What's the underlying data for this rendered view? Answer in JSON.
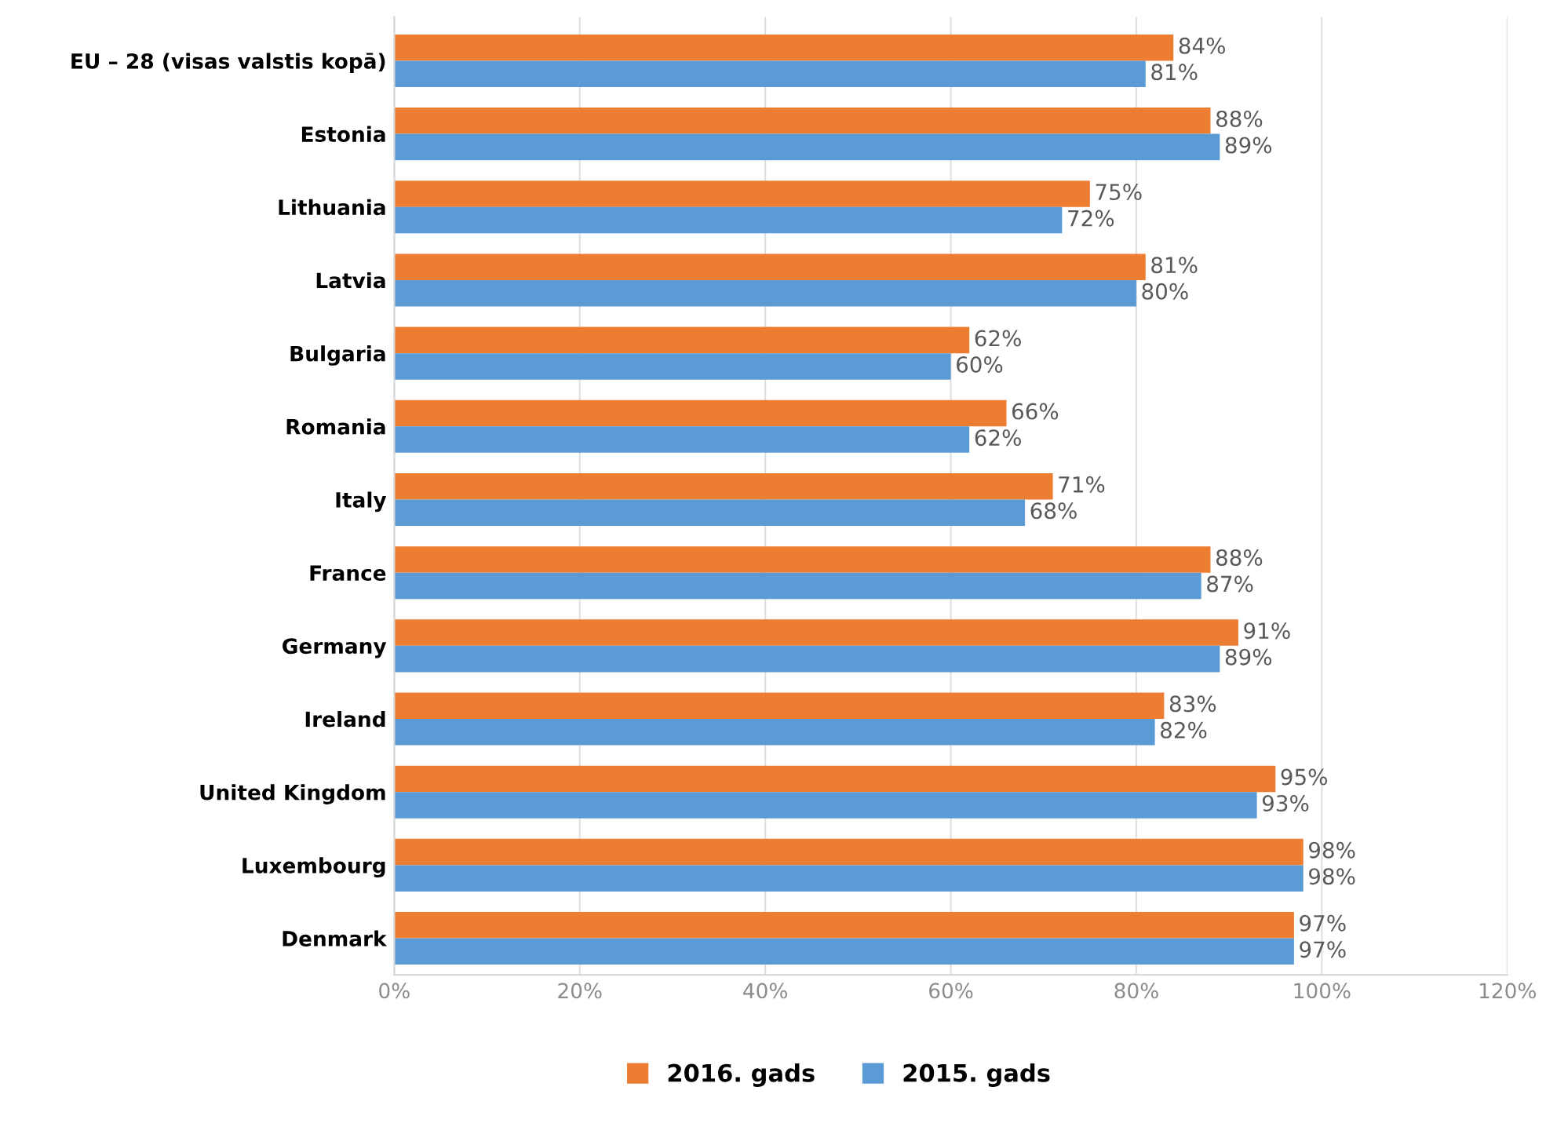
{
  "chart_data": {
    "type": "bar",
    "orientation": "horizontal",
    "categories": [
      "EU – 28 (visas valstis kopā)",
      "Estonia",
      "Lithuania",
      "Latvia",
      "Bulgaria",
      "Romania",
      "Italy",
      "France",
      "Germany",
      "Ireland",
      "United Kingdom",
      "Luxembourg",
      "Denmark"
    ],
    "series": [
      {
        "name": "2016. gads",
        "color": "#ed7d31",
        "values": [
          84,
          88,
          75,
          81,
          62,
          66,
          71,
          88,
          91,
          83,
          95,
          98,
          97
        ],
        "value_labels": [
          "84%",
          "88%",
          "75%",
          "81%",
          "62%",
          "66%",
          "71%",
          "88%",
          "91%",
          "83%",
          "95%",
          "98%",
          "97%"
        ]
      },
      {
        "name": "2015. gads",
        "color": "#5b9bd5",
        "values": [
          81,
          89,
          72,
          80,
          60,
          62,
          68,
          87,
          89,
          82,
          93,
          98,
          97
        ],
        "value_labels": [
          "81%",
          "89%",
          "72%",
          "80%",
          "60%",
          "62%",
          "68%",
          "87%",
          "89%",
          "82%",
          "93%",
          "98%",
          "97%"
        ]
      }
    ],
    "xlim": [
      0,
      120
    ],
    "xticks": [
      {
        "value": 0,
        "label": "0%"
      },
      {
        "value": 20,
        "label": "20%"
      },
      {
        "value": 40,
        "label": "40%"
      },
      {
        "value": 60,
        "label": "60%"
      },
      {
        "value": 80,
        "label": "80%"
      },
      {
        "value": 100,
        "label": "100%"
      },
      {
        "value": 120,
        "label": "120%"
      }
    ],
    "grid": "x",
    "legend": "bottom"
  }
}
